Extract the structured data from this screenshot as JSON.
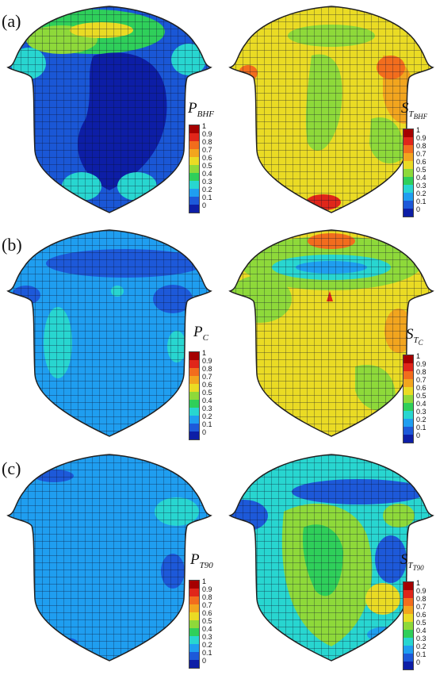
{
  "row_labels": [
    "(a)",
    "(b)",
    "(c)"
  ],
  "legends": {
    "a_left": {
      "var": "P",
      "sub": "BHF",
      "subsub": ""
    },
    "a_right": {
      "var": "S",
      "sub": "T",
      "subsub": "BHF"
    },
    "b_left": {
      "var": "P",
      "sub": "C",
      "subsub": ""
    },
    "b_right": {
      "var": "S",
      "sub": "T",
      "subsub": "C"
    },
    "c_left": {
      "var": "P",
      "sub": "T90",
      "subsub": ""
    },
    "c_right": {
      "var": "S",
      "sub": "T",
      "subsub": "T90"
    }
  },
  "colorbar": {
    "ticks": [
      "1",
      "0.9",
      "0.8",
      "0.7",
      "0.6",
      "0.5",
      "0.4",
      "0.3",
      "0.2",
      "0.1",
      "0"
    ],
    "colors": [
      "#a50000",
      "#e0261a",
      "#f26d1d",
      "#f2a51e",
      "#eadb24",
      "#8ed93a",
      "#2fcf5a",
      "#28d6d0",
      "#1f9ef0",
      "#1d59d9",
      "#0d1ea6"
    ]
  }
}
